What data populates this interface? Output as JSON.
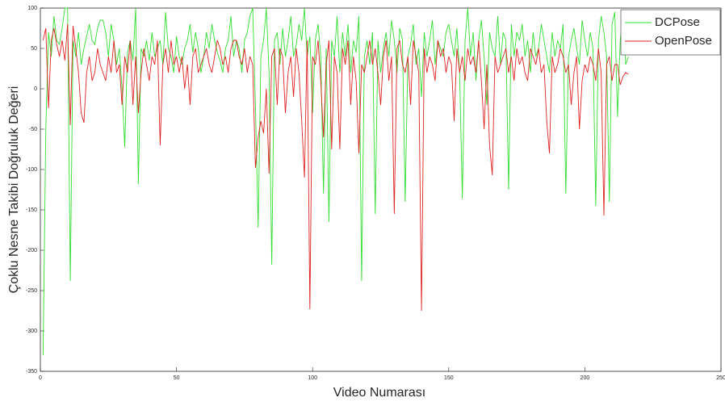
{
  "chart_data": {
    "type": "line",
    "x_label": "Video Numarası",
    "y_label": "Çoklu Nesne Takibi Doğruluk Değeri",
    "x": [
      1,
      2,
      3,
      4,
      5,
      6,
      7,
      8,
      9,
      10,
      11,
      12,
      13,
      14,
      15,
      16,
      17,
      18,
      19,
      20,
      21,
      22,
      23,
      24,
      25,
      26,
      27,
      28,
      29,
      30,
      31,
      32,
      33,
      34,
      35,
      36,
      37,
      38,
      39,
      40,
      41,
      42,
      43,
      44,
      45,
      46,
      47,
      48,
      49,
      50,
      51,
      52,
      53,
      54,
      55,
      56,
      57,
      58,
      59,
      60,
      61,
      62,
      63,
      64,
      65,
      66,
      67,
      68,
      69,
      70,
      71,
      72,
      73,
      74,
      75,
      76,
      77,
      78,
      79,
      80,
      81,
      82,
      83,
      84,
      85,
      86,
      87,
      88,
      89,
      90,
      91,
      92,
      93,
      94,
      95,
      96,
      97,
      98,
      99,
      100,
      101,
      102,
      103,
      104,
      105,
      106,
      107,
      108,
      109,
      110,
      111,
      112,
      113,
      114,
      115,
      116,
      117,
      118,
      119,
      120,
      121,
      122,
      123,
      124,
      125,
      126,
      127,
      128,
      129,
      130,
      131,
      132,
      133,
      134,
      135,
      136,
      137,
      138,
      139,
      140,
      141,
      142,
      143,
      144,
      145,
      146,
      147,
      148,
      149,
      150,
      151,
      152,
      153,
      154,
      155,
      156,
      157,
      158,
      159,
      160,
      161,
      162,
      163,
      164,
      165,
      166,
      167,
      168,
      169,
      170,
      171,
      172,
      173,
      174,
      175,
      176,
      177,
      178,
      179,
      180,
      181,
      182,
      183,
      184,
      185,
      186,
      187,
      188,
      189,
      190,
      191,
      192,
      193,
      194,
      195,
      196,
      197,
      198,
      199,
      200,
      201,
      202,
      203,
      204,
      205,
      206,
      207,
      208,
      209,
      210,
      211,
      212,
      213,
      214,
      215,
      216
    ],
    "series": [
      {
        "name": "DCPose",
        "color": "#33dd33",
        "values": [
          -330,
          -50,
          70,
          40,
          90,
          60,
          55,
          75,
          100,
          100,
          -238,
          60,
          40,
          70,
          30,
          50,
          65,
          80,
          60,
          55,
          75,
          85,
          85,
          70,
          40,
          80,
          60,
          30,
          50,
          0,
          -72,
          45,
          60,
          35,
          100,
          -118,
          50,
          40,
          60,
          35,
          70,
          40,
          50,
          60,
          30,
          95,
          50,
          40,
          20,
          65,
          40,
          30,
          50,
          60,
          80,
          45,
          70,
          50,
          20,
          40,
          70,
          50,
          80,
          60,
          45,
          35,
          20,
          50,
          60,
          90,
          40,
          60,
          50,
          20,
          60,
          70,
          90,
          100,
          -20,
          -172,
          40,
          60,
          100,
          20,
          -218,
          60,
          70,
          30,
          75,
          40,
          60,
          90,
          40,
          55,
          80,
          60,
          100,
          40,
          65,
          -30,
          60,
          80,
          40,
          -130,
          50,
          -165,
          60,
          40,
          90,
          20,
          70,
          40,
          80,
          20,
          60,
          45,
          90,
          -238,
          40,
          60,
          30,
          70,
          -155,
          60,
          20,
          50,
          70,
          40,
          85,
          60,
          20,
          75,
          60,
          -140,
          40,
          55,
          80,
          30,
          50,
          -10,
          70,
          40,
          60,
          85,
          30,
          60,
          50,
          40,
          70,
          80,
          60,
          40,
          75,
          20,
          -136,
          60,
          100,
          40,
          70,
          10,
          60,
          85,
          40,
          -20,
          70,
          50,
          40,
          90,
          30,
          70,
          60,
          -125,
          80,
          40,
          70,
          60,
          80,
          40,
          60,
          20,
          70,
          40,
          50,
          80,
          60,
          40,
          20,
          70,
          40,
          60,
          50,
          80,
          -130,
          40,
          60,
          75,
          50,
          30,
          85,
          60,
          40,
          70,
          50,
          -145,
          60,
          90,
          70,
          40,
          -140,
          80,
          95,
          -35,
          60,
          90,
          30,
          40
        ]
      },
      {
        "name": "OpenPose",
        "color": "#dd2222",
        "values": [
          60,
          75,
          -24,
          60,
          75,
          55,
          40,
          60,
          35,
          80,
          -45,
          78,
          50,
          20,
          -30,
          -42,
          20,
          40,
          10,
          20,
          50,
          30,
          20,
          10,
          40,
          20,
          60,
          20,
          30,
          -20,
          40,
          20,
          60,
          -20,
          40,
          -30,
          20,
          50,
          30,
          10,
          40,
          30,
          60,
          -70,
          30,
          50,
          20,
          60,
          30,
          40,
          20,
          40,
          0,
          30,
          -20,
          40,
          50,
          20,
          30,
          40,
          50,
          30,
          20,
          40,
          60,
          50,
          30,
          40,
          20,
          50,
          60,
          60,
          40,
          30,
          50,
          20,
          40,
          30,
          -98,
          -60,
          -40,
          -55,
          0,
          -105,
          40,
          50,
          -20,
          50,
          40,
          -30,
          20,
          40,
          -10,
          50,
          20,
          -40,
          -110,
          60,
          -273,
          40,
          30,
          60,
          10,
          -60,
          30,
          60,
          -75,
          40,
          20,
          -75,
          50,
          30,
          60,
          -20,
          40,
          10,
          -80,
          30,
          20,
          40,
          60,
          30,
          50,
          20,
          -20,
          40,
          60,
          10,
          40,
          -155,
          50,
          60,
          30,
          20,
          40,
          -20,
          60,
          40,
          20,
          -275,
          50,
          20,
          40,
          30,
          10,
          60,
          40,
          50,
          20,
          40,
          30,
          -40,
          50,
          20,
          40,
          10,
          50,
          30,
          40,
          20,
          60,
          10,
          -50,
          30,
          -70,
          -107,
          40,
          20,
          30,
          40,
          50,
          20,
          40,
          10,
          50,
          30,
          40,
          20,
          10,
          50,
          40,
          30,
          50,
          20,
          30,
          -40,
          -80,
          40,
          20,
          30,
          50,
          40,
          20,
          30,
          -20,
          20,
          40,
          -50,
          10,
          30,
          20,
          40,
          30,
          10,
          50,
          20,
          -157,
          30,
          40,
          10,
          30,
          30,
          5,
          15,
          20,
          18
        ]
      }
    ],
    "xlim": [
      0,
      250
    ],
    "xticks": [
      0,
      50,
      100,
      150,
      200,
      250
    ],
    "ylim": [
      -350,
      100
    ],
    "yticks": [
      -350,
      -300,
      -250,
      -200,
      -150,
      -100,
      -50,
      0,
      50,
      100
    ],
    "legend": "northeast"
  }
}
